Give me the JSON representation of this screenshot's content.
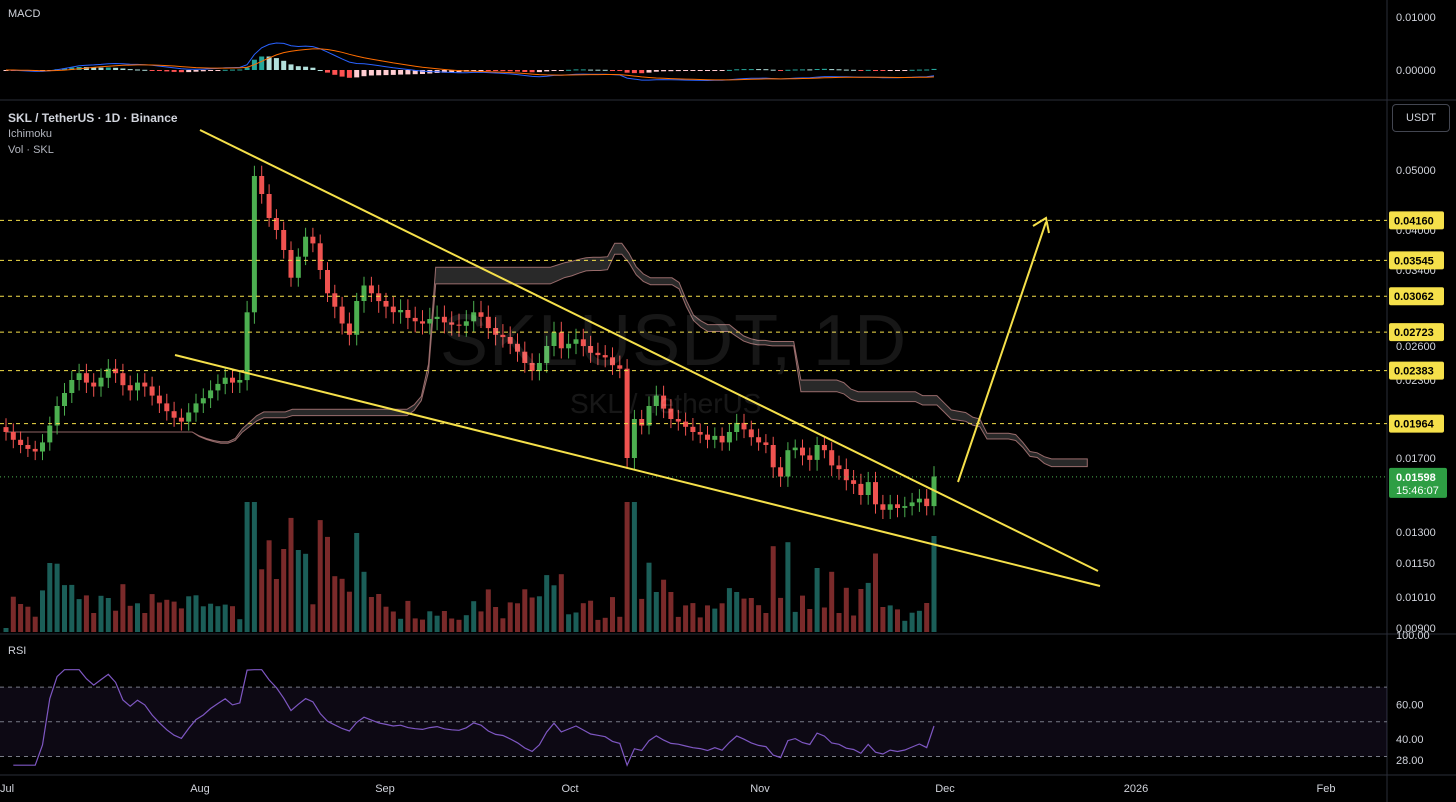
{
  "header": {
    "symbol_line": "SKL / TetherUS · 1D · Binance",
    "indicator1": "Ichimoku",
    "indicator2": "Vol · SKL",
    "currency": "USDT"
  },
  "panes": {
    "macd_label": "MACD",
    "rsi_label": "RSI"
  },
  "watermark": {
    "main": "SKLUSDT, 1D",
    "sub": "SKL / TetherUS"
  },
  "colors": {
    "bull": "#26a69a",
    "bear": "#ef5350",
    "bull_bright": "#4caf50",
    "trendline": "#f5e04a",
    "cloud": "#3a3a3a",
    "rsi": "#7e57c2",
    "macd_line": "#2962ff",
    "signal_line": "#ff6d00"
  },
  "chart_data": {
    "type": "candlestick",
    "x_ticks": [
      "Jul",
      "Aug",
      "Sep",
      "Oct",
      "Nov",
      "Dec",
      "2026",
      "Feb"
    ],
    "y_ticks": [
      "0.05000",
      "0.04000",
      "0.03400",
      "0.03000",
      "0.02600",
      "0.02300",
      "0.01700",
      "0.01300",
      "0.01150",
      "0.01010",
      "0.00900"
    ],
    "price_levels": [
      "0.04160",
      "0.03545",
      "0.03062",
      "0.02723",
      "0.02383",
      "0.01964"
    ],
    "current_price": "0.01598",
    "countdown": "15:46:07",
    "candles_close": [
      0.019,
      0.0184,
      0.018,
      0.0177,
      0.0175,
      0.0182,
      0.0195,
      0.021,
      0.022,
      0.023,
      0.0236,
      0.0228,
      0.0225,
      0.0232,
      0.024,
      0.0236,
      0.0226,
      0.0222,
      0.0228,
      0.0225,
      0.0218,
      0.0212,
      0.0206,
      0.0201,
      0.0198,
      0.0205,
      0.0212,
      0.0216,
      0.0222,
      0.0227,
      0.0232,
      0.0228,
      0.023,
      0.029,
      0.049,
      0.046,
      0.042,
      0.04,
      0.037,
      0.033,
      0.036,
      0.039,
      0.038,
      0.034,
      0.031,
      0.0295,
      0.028,
      0.027,
      0.03,
      0.032,
      0.031,
      0.03,
      0.0295,
      0.029,
      0.0292,
      0.0285,
      0.0282,
      0.028,
      0.0284,
      0.0286,
      0.0281,
      0.0279,
      0.0278,
      0.0282,
      0.029,
      0.0286,
      0.0276,
      0.027,
      0.0268,
      0.0262,
      0.0255,
      0.0245,
      0.0238,
      0.0245,
      0.026,
      0.0272,
      0.0258,
      0.0262,
      0.0266,
      0.026,
      0.0254,
      0.0252,
      0.025,
      0.0243,
      0.024,
      0.017,
      0.02,
      0.0195,
      0.021,
      0.0218,
      0.0208,
      0.02,
      0.0198,
      0.0194,
      0.019,
      0.0188,
      0.0184,
      0.0187,
      0.0182,
      0.019,
      0.0197,
      0.0192,
      0.0186,
      0.0182,
      0.018,
      0.0165,
      0.016,
      0.0176,
      0.0178,
      0.0172,
      0.0169,
      0.018,
      0.0176,
      0.0166,
      0.0164,
      0.0158,
      0.0156,
      0.015,
      0.0157,
      0.0145,
      0.0142,
      0.0145,
      0.0143,
      0.0144,
      0.0146,
      0.0148,
      0.0144,
      0.016
    ],
    "macd_y_ticks": [
      "0.01000",
      "0.00000"
    ],
    "rsi_y_ticks": [
      "100.00",
      "60.00",
      "40.00",
      "28.00"
    ]
  }
}
